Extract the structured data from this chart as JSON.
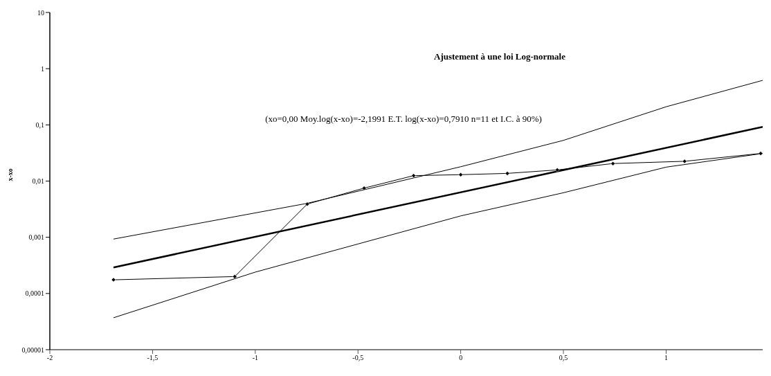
{
  "chart_data": {
    "type": "line",
    "title": "Ajustement à une loi Log-normale",
    "subtitle": "(xo=0,00 Moy.log(x-xo)=-2,1991 E.T. log(x-xo)=0,7910 n=11 et I.C. à 90%)",
    "ylabel": "x-xo",
    "log": "y",
    "grid": false,
    "line_style": "solid",
    "xlim": [
      -2,
      1.47
    ],
    "xticks": [
      {
        "value": -2,
        "label": "-2"
      },
      {
        "value": -1.5,
        "label": "-1,5"
      },
      {
        "value": -1,
        "label": "-1"
      },
      {
        "value": -0.5,
        "label": "-0,5"
      },
      {
        "value": 0,
        "label": "0"
      },
      {
        "value": 0.5,
        "label": "0,5"
      },
      {
        "value": 1,
        "label": "1"
      }
    ],
    "ylim": [
      1e-05,
      10
    ],
    "yticks": [
      {
        "value": 1e-05,
        "label": "0,00001"
      },
      {
        "value": 0.0001,
        "label": "0,0001"
      },
      {
        "value": 0.001,
        "label": "0,001"
      },
      {
        "value": 0.01,
        "label": "0,01"
      },
      {
        "value": 0.1,
        "label": "0,1"
      },
      {
        "value": 1,
        "label": "1"
      },
      {
        "value": 10,
        "label": "10"
      }
    ],
    "series": [
      {
        "color": "#000000",
        "marker": "diamond",
        "x": [
          -1.69,
          -1.1,
          -0.747,
          -0.47,
          -0.229,
          0,
          0.227,
          0.47,
          0.741,
          1.09,
          1.46
        ],
        "values": [
          0.000175,
          0.0002,
          0.0039,
          0.0075,
          0.0125,
          0.013,
          0.0137,
          0.0158,
          0.0205,
          0.0225,
          0.031
        ]
      },
      {
        "color": "#000000",
        "marker": "none",
        "x": [
          -1.69,
          1.47
        ],
        "values": [
          0.00029,
          0.092
        ]
      },
      {
        "color": "#000000",
        "marker": "none",
        "x": [
          -1.69,
          -0.75,
          0,
          0.5,
          1,
          1.47
        ],
        "values": [
          0.00093,
          0.004,
          0.018,
          0.053,
          0.21,
          0.62
        ]
      },
      {
        "color": "#000000",
        "marker": "none",
        "x": [
          -1.69,
          -1,
          -0.5,
          0,
          0.5,
          1,
          1.47
        ],
        "values": [
          3.7e-05,
          0.00024,
          0.00076,
          0.0024,
          0.0062,
          0.0177,
          0.031
        ]
      }
    ]
  }
}
